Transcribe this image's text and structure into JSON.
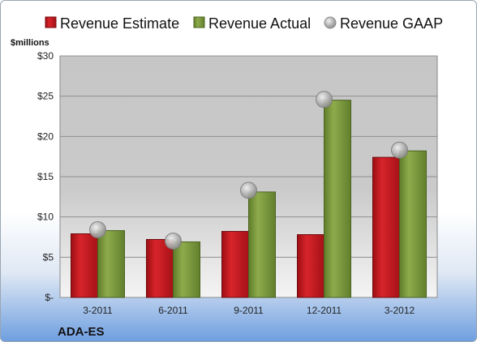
{
  "chart_data": {
    "type": "bar",
    "ticker": "ADA-ES",
    "ylabel": "$millions",
    "categories": [
      "3-2011",
      "6-2011",
      "9-2011",
      "12-2011",
      "3-2012"
    ],
    "series": [
      {
        "name": "Revenue Estimate",
        "type": "bar",
        "color": "#c0141b",
        "values": [
          7.9,
          7.2,
          8.2,
          7.8,
          17.4
        ]
      },
      {
        "name": "Revenue Actual",
        "type": "bar",
        "color": "#7a9a3a",
        "values": [
          8.3,
          6.9,
          13.1,
          24.5,
          18.2
        ]
      },
      {
        "name": "Revenue GAAP",
        "type": "scatter",
        "color": "#b8b8b8",
        "values": [
          8.4,
          7.0,
          13.3,
          24.6,
          18.3
        ]
      }
    ],
    "ylim": [
      0,
      30
    ],
    "yticks": [
      0,
      5,
      10,
      15,
      20,
      25,
      30
    ],
    "ytick_labels": [
      "$-",
      "$5",
      "$10",
      "$15",
      "$20",
      "$25",
      "$30"
    ],
    "grid": true,
    "legend_position": "top"
  }
}
